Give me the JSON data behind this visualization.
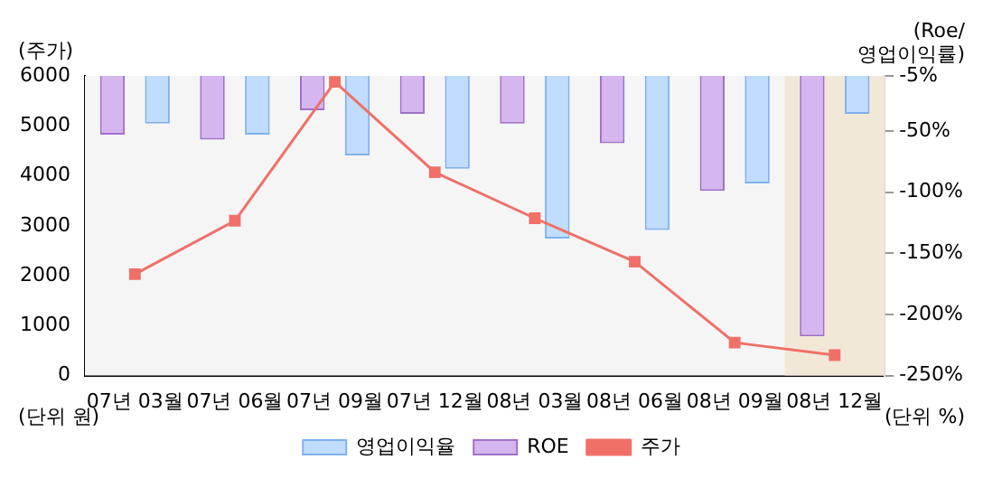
{
  "chart_data": {
    "type": "bar",
    "categories": [
      "07년 03월",
      "07년 06월",
      "07년 09월",
      "07년 12월",
      "08년 03월",
      "08년 06월",
      "08년 09월",
      "08년 12월"
    ],
    "ylabel": "(주가)",
    "y2label": "(Roe/\n영업이익률)",
    "annotations": [
      "(단위 원)",
      "(단위 %)"
    ],
    "series": [
      {
        "name": "영업이익율",
        "color": "#c0dcff",
        "axis": "y2",
        "values": [
          -44,
          -53,
          -70,
          -81,
          -138,
          -131,
          -93,
          -36
        ]
      },
      {
        "name": "ROE",
        "color": "#d5b6ee",
        "axis": "y2",
        "values": [
          -53,
          -57,
          -33,
          -36,
          -44,
          -60,
          -99,
          -218
        ]
      },
      {
        "name": "주가",
        "type": "line",
        "color": "#f07068",
        "marker": "square",
        "values": [
          2030,
          3100,
          5880,
          4070,
          3150,
          2280,
          660,
          410
        ]
      }
    ],
    "ylim": [
      0,
      6000
    ],
    "yticks": [
      0,
      1000,
      2000,
      3000,
      4000,
      5000,
      6000
    ],
    "y2lim": [
      -250,
      -5
    ],
    "y2ticks": [
      {
        "value": -5,
        "label": "-5%"
      },
      {
        "value": -50,
        "label": "-50%"
      },
      {
        "value": -100,
        "label": "-100%"
      },
      {
        "value": -150,
        "label": "-150%"
      },
      {
        "value": -200,
        "label": "-200%"
      },
      {
        "value": -250,
        "label": "-250%"
      }
    ],
    "bands": [
      {
        "axis": "x",
        "from": "08년 12월",
        "to": "08년 12월",
        "color": "#f2e8d8"
      }
    ],
    "grid": false,
    "legend": "bottom"
  }
}
